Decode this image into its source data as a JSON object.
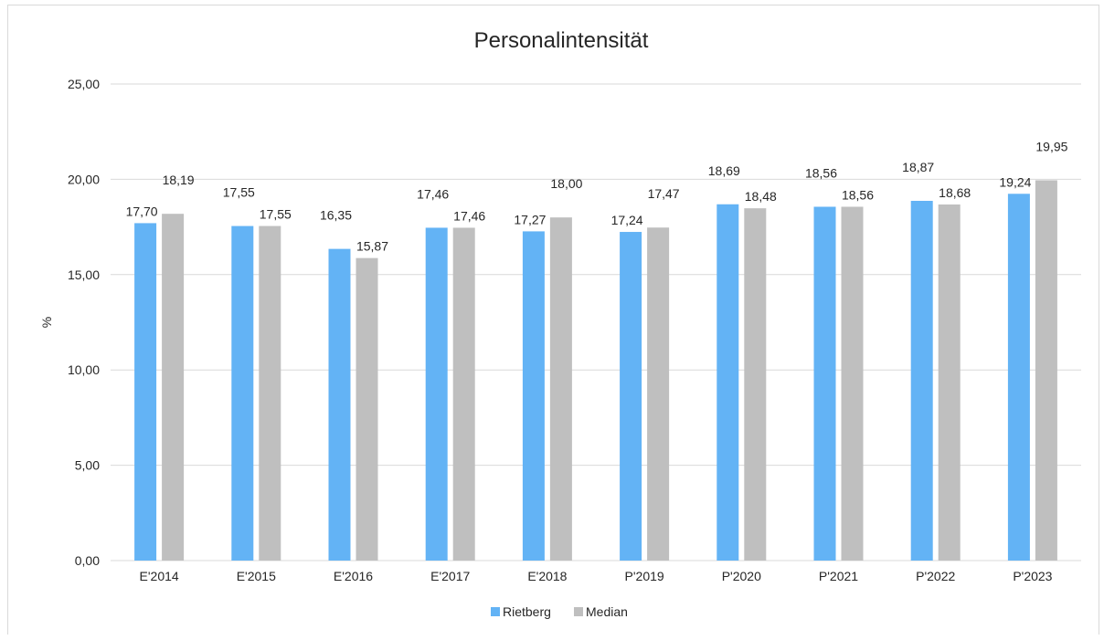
{
  "chart_data": {
    "type": "bar",
    "title": "Personalintensität",
    "ylabel": "%",
    "xlabel": "",
    "ylim": [
      0,
      25
    ],
    "yticks": [
      0,
      5,
      10,
      15,
      20,
      25
    ],
    "ytick_labels": [
      "0,00",
      "5,00",
      "10,00",
      "15,00",
      "20,00",
      "25,00"
    ],
    "grid": true,
    "legend_position": "bottom",
    "categories": [
      "E'2014",
      "E'2015",
      "E'2016",
      "E'2017",
      "E'2018",
      "P'2019",
      "P'2020",
      "P'2021",
      "P'2022",
      "P'2023"
    ],
    "series": [
      {
        "name": "Rietberg",
        "color": "#63b3f5",
        "values": [
          17.7,
          17.55,
          16.35,
          17.46,
          17.27,
          17.24,
          18.69,
          18.56,
          18.87,
          19.24
        ],
        "labels": [
          "17,70",
          "17,55",
          "16,35",
          "17,46",
          "17,27",
          "17,24",
          "18,69",
          "18,56",
          "18,87",
          "19,24"
        ]
      },
      {
        "name": "Median",
        "color": "#bfbfbf",
        "values": [
          18.19,
          17.55,
          15.87,
          17.46,
          18.0,
          17.47,
          18.48,
          18.56,
          18.68,
          19.95
        ],
        "labels": [
          "18,19",
          "17,55",
          "15,87",
          "17,46",
          "18,00",
          "17,47",
          "18,48",
          "18,56",
          "18,68",
          "19,95"
        ]
      }
    ],
    "gridline_color": "#d9d9d9"
  }
}
